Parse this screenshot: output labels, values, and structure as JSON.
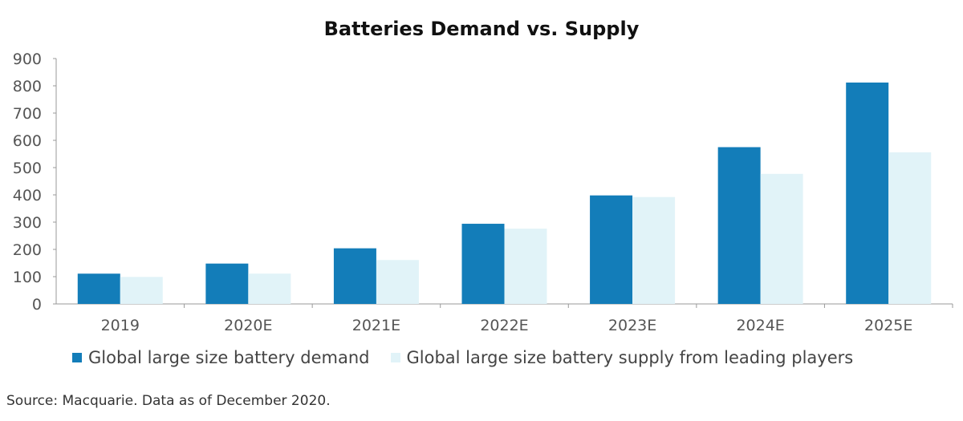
{
  "chart_data": {
    "type": "bar",
    "title": "Batteries Demand vs. Supply",
    "categories": [
      "2019",
      "2020E",
      "2021E",
      "2022E",
      "2023E",
      "2024E",
      "2025E"
    ],
    "series": [
      {
        "name": "Global large size battery demand",
        "color": "#137db9",
        "values": [
          111,
          148,
          204,
          294,
          398,
          575,
          812
        ]
      },
      {
        "name": "Global large size battery supply from leading players",
        "color": "#e1f3f8",
        "values": [
          99,
          111,
          161,
          276,
          392,
          477,
          556
        ]
      }
    ],
    "ylim": [
      0,
      900
    ],
    "yticks": [
      0,
      100,
      200,
      300,
      400,
      500,
      600,
      700,
      800,
      900
    ],
    "grid": false,
    "legend": "bottom",
    "xlabel": "",
    "ylabel": ""
  },
  "source": "Source: Macquarie. Data as of December 2020."
}
